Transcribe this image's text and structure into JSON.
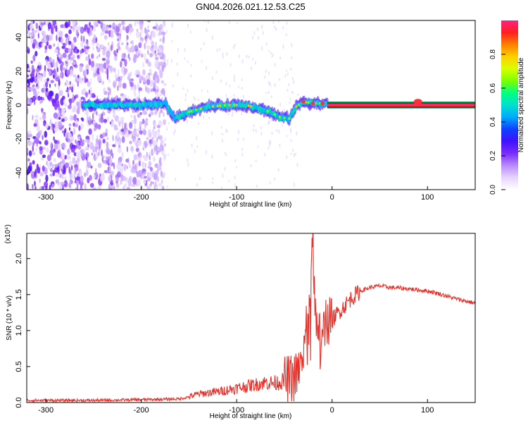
{
  "page_title": "GN04.2026.021.12.53.C25",
  "colors": {
    "snr_line": "#e8312a",
    "colorbar_stops": [
      "#ffffff",
      "#e6d4ff",
      "#b98bff",
      "#7a2dff",
      "#4010ff",
      "#1040ff",
      "#00a8ff",
      "#00e0d0",
      "#00ff80",
      "#7cff00",
      "#d8ff00",
      "#ffd000",
      "#ff8000",
      "#ff2020",
      "#ff2080"
    ]
  },
  "chart_data": [
    {
      "type": "heatmap",
      "title": "GN04.2026.021.12.53.C25",
      "xlabel": "Height of straight line (km)",
      "ylabel": "Frequency (Hz)",
      "xlim": [
        -320,
        150
      ],
      "ylim": [
        -50,
        50
      ],
      "xticks": [
        -300,
        -200,
        -100,
        0,
        100
      ],
      "xtick_labels": [
        "-300",
        "-200",
        "-100",
        "0",
        "100"
      ],
      "yticks": [
        -40,
        -20,
        0,
        20,
        40
      ],
      "ytick_labels": [
        "-40",
        "-20",
        "0",
        "20",
        "40"
      ],
      "colorbar": {
        "label": "Normalized spectral amplitude",
        "range": [
          0,
          1
        ],
        "ticks": [
          0.0,
          0.2,
          0.4,
          0.6,
          0.8
        ],
        "tick_labels": [
          "0.0",
          "0.2",
          "0.4",
          "0.6",
          "0.8"
        ]
      },
      "noise_region_x": [
        -320,
        -175
      ],
      "signal_centerline": {
        "x": [
          -260,
          -230,
          -200,
          -175,
          -165,
          -150,
          -130,
          -110,
          -90,
          -70,
          -55,
          -45,
          -38,
          -30,
          -20,
          -10,
          0,
          20,
          50,
          80,
          90,
          100,
          150
        ],
        "y": [
          0,
          0,
          0,
          1,
          -8,
          -4,
          -1,
          0,
          0,
          -3,
          -7,
          -8,
          -1,
          2,
          1,
          1,
          0,
          0,
          0,
          0,
          2,
          0,
          0
        ]
      }
    },
    {
      "type": "line",
      "xlabel": "Height of straight line (km)",
      "ylabel": "SNR (10 * v/v)",
      "y_multiplier": "(x10⁴)",
      "xlim": [
        -320,
        150
      ],
      "ylim": [
        0,
        2.35
      ],
      "xticks": [
        -300,
        -200,
        -100,
        0,
        100
      ],
      "xtick_labels": [
        "-300",
        "-200",
        "-100",
        "0",
        "100"
      ],
      "yticks": [
        0.0,
        0.5,
        1.0,
        1.5,
        2.0
      ],
      "ytick_labels": [
        "0.0",
        "0.5",
        "1.0",
        "1.5",
        "2.0"
      ],
      "series": [
        {
          "color": "#e8312a",
          "x": [
            -320,
            -250,
            -200,
            -160,
            -150,
            -140,
            -120,
            -100,
            -80,
            -70,
            -60,
            -50,
            -40,
            -35,
            -30,
            -25,
            -22,
            -20,
            -18,
            -15,
            -10,
            -5,
            0,
            10,
            20,
            30,
            40,
            50,
            60,
            80,
            100,
            110,
            120,
            130,
            150
          ],
          "y": [
            0.03,
            0.03,
            0.04,
            0.05,
            0.08,
            0.12,
            0.15,
            0.2,
            0.25,
            0.28,
            0.27,
            0.3,
            0.35,
            0.4,
            0.7,
            1.2,
            1.7,
            2.3,
            1.2,
            0.9,
            1.0,
            1.1,
            1.15,
            1.3,
            1.45,
            1.55,
            1.6,
            1.62,
            1.6,
            1.58,
            1.55,
            1.52,
            1.48,
            1.44,
            1.38
          ]
        }
      ]
    }
  ]
}
